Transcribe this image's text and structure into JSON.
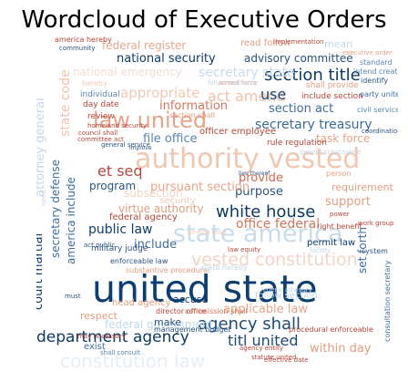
{
  "title": "Wordcloud of Executive Orders",
  "words": [
    {
      "text": "united state",
      "color": "#0b3e73"
    },
    {
      "text": "authority vested",
      "color": "#f1c7b2"
    },
    {
      "text": "state america",
      "color": "#c8dcec"
    },
    {
      "text": "law united",
      "color": "#e8a48a"
    },
    {
      "text": "constitution law",
      "color": "#e6eef5"
    },
    {
      "text": "section title",
      "color": "#0e3a66"
    },
    {
      "text": "vested constitution",
      "color": "#f2d4c4"
    },
    {
      "text": "national security",
      "color": "#0e3a66"
    },
    {
      "text": "advisory committee",
      "color": "#2a4f7a"
    },
    {
      "text": "white house",
      "color": "#0e3a66"
    },
    {
      "text": "department agency",
      "color": "#0e3a66"
    },
    {
      "text": "agency shall",
      "color": "#1d4a7a"
    },
    {
      "text": "titl united",
      "color": "#1d4a7a"
    },
    {
      "text": "secretary treasury",
      "color": "#3a6a9a"
    },
    {
      "text": "section act",
      "color": "#3b6c9d"
    },
    {
      "text": "act amend",
      "color": "#f0c3ac"
    },
    {
      "text": "federal register",
      "color": "#e8a890"
    },
    {
      "text": "national emergency",
      "color": "#f3ddd0"
    },
    {
      "text": "secretary state",
      "color": "#c9dcec"
    },
    {
      "text": "use",
      "color": "#1d4a7a"
    },
    {
      "text": "information",
      "color": "#d5765d"
    },
    {
      "text": "appropriate",
      "color": "#f2c9b6"
    },
    {
      "text": "file office",
      "color": "#5a86b2"
    },
    {
      "text": "et seq",
      "color": "#b5463a"
    },
    {
      "text": "provide",
      "color": "#d06a50"
    },
    {
      "text": "purpose",
      "color": "#2a5583"
    },
    {
      "text": "pursuant section",
      "color": "#e8a48a"
    },
    {
      "text": "program",
      "color": "#2a5583"
    },
    {
      "text": "virtue authority",
      "color": "#e39d82"
    },
    {
      "text": "public law",
      "color": "#123d6b"
    },
    {
      "text": "include",
      "color": "#3d6e9e"
    },
    {
      "text": "office federal",
      "color": "#d5765d"
    },
    {
      "text": "federal agency",
      "color": "#b5463a"
    },
    {
      "text": "permit law",
      "color": "#0e3a66"
    },
    {
      "text": "support",
      "color": "#e39d82"
    },
    {
      "text": "requirement",
      "color": "#e39d82"
    },
    {
      "text": "applicable law",
      "color": "#e8a48a"
    },
    {
      "text": "federal government",
      "color": "#c3d8ea"
    },
    {
      "text": "accuse",
      "color": "#0e3a66"
    },
    {
      "text": "head agency",
      "color": "#e39d82"
    },
    {
      "text": "respect",
      "color": "#e39d82"
    },
    {
      "text": "make",
      "color": "#2a5583"
    },
    {
      "text": "within day",
      "color": "#e39d82"
    },
    {
      "text": "set forth",
      "color": "#3d6e9e"
    },
    {
      "text": "court martial",
      "color": "#0e3a66"
    },
    {
      "text": "america include",
      "color": "#3d6e9e"
    },
    {
      "text": "secretary defense",
      "color": "#3d6e9e"
    },
    {
      "text": "attorney general",
      "color": "#c3d8ea"
    },
    {
      "text": "state code",
      "color": "#f0c3ac"
    },
    {
      "text": "military judge",
      "color": "#2a5583"
    },
    {
      "text": "task force",
      "color": "#e8a48a"
    },
    {
      "text": "officer employee",
      "color": "#b5463a"
    },
    {
      "text": "rule regulation",
      "color": "#b5463a"
    },
    {
      "text": "read follow",
      "color": "#e39d82"
    },
    {
      "text": "mean",
      "color": "#c3d8ea"
    },
    {
      "text": "exist",
      "color": "#3d6e9e"
    },
    {
      "text": "director office",
      "color": "#b5463a"
    },
    {
      "text": "management budget",
      "color": "#2a5583"
    },
    {
      "text": "commission shall",
      "color": "#d5765d"
    },
    {
      "text": "procedural enforceable",
      "color": "#b5463a"
    },
    {
      "text": "follow section",
      "color": "#c3d8ea"
    },
    {
      "text": "section shall",
      "color": "#e39d82"
    },
    {
      "text": "review",
      "color": "#b5463a"
    },
    {
      "text": "individual",
      "color": "#5a86b2"
    },
    {
      "text": "day date",
      "color": "#b5463a"
    },
    {
      "text": "hereby",
      "color": "#f2c9b6"
    },
    {
      "text": "shall provide",
      "color": "#e39d82"
    },
    {
      "text": "include section",
      "color": "#b5463a"
    },
    {
      "text": "general service",
      "color": "#2a5583"
    },
    {
      "text": "substantive procedural",
      "color": "#e39d82"
    },
    {
      "text": "right benefit",
      "color": "#b5463a"
    },
    {
      "text": "enforceable law",
      "color": "#2a5583"
    },
    {
      "text": "act public",
      "color": "#2a5583"
    },
    {
      "text": "agency entity",
      "color": "#b5463a"
    },
    {
      "text": "statute united",
      "color": "#b5463a"
    },
    {
      "text": "consultation secretary",
      "color": "#3d6e9e"
    },
    {
      "text": "system",
      "color": "#2a5583"
    },
    {
      "text": "party united",
      "color": "#3d6e9e"
    },
    {
      "text": "civil service",
      "color": "#5a86b2"
    },
    {
      "text": "intend create",
      "color": "#5a86b2"
    },
    {
      "text": "identify",
      "color": "#2a5583"
    },
    {
      "text": "state hereby",
      "color": "#c3d8ea"
    },
    {
      "text": "america hereby",
      "color": "#b5463a"
    },
    {
      "text": "community",
      "color": "#2a5583"
    },
    {
      "text": "implementation",
      "color": "#b5463a"
    },
    {
      "text": "armed force",
      "color": "#e39d82"
    },
    {
      "text": "standard",
      "color": "#5a86b2"
    },
    {
      "text": "homeland security",
      "color": "#b5463a"
    },
    {
      "text": "council shall",
      "color": "#b5463a"
    },
    {
      "text": "committee act",
      "color": "#b5463a"
    },
    {
      "text": "executive order",
      "color": "#e39d82"
    },
    {
      "text": "power",
      "color": "#b5463a"
    },
    {
      "text": "facility",
      "color": "#c3d8ea"
    },
    {
      "text": "work group",
      "color": "#b5463a"
    },
    {
      "text": "law equity",
      "color": "#b5463a"
    },
    {
      "text": "need",
      "color": "#c3d8ea"
    },
    {
      "text": "must",
      "color": "#2a5583"
    },
    {
      "text": "may necessary",
      "color": "#b5463a"
    },
    {
      "text": "federal advisory",
      "color": "#c3d8ea"
    },
    {
      "text": "improve",
      "color": "#2a5583"
    },
    {
      "text": "coordination",
      "color": "#2a5583"
    },
    {
      "text": "benefit substantive",
      "color": "#c3d8ea"
    },
    {
      "text": "subsection",
      "color": "#f2d4c4"
    },
    {
      "text": "security",
      "color": "#f2c9b6"
    },
    {
      "text": "follow authority",
      "color": "#c3d8ea"
    },
    {
      "text": "amend read",
      "color": "#f2c9b6"
    },
    {
      "text": "effective date",
      "color": "#b5463a"
    },
    {
      "text": "lieu thereof",
      "color": "#2a5583"
    },
    {
      "text": "shall consult",
      "color": "#5a86b2"
    },
    {
      "text": "person",
      "color": "#e39d82"
    }
  ]
}
